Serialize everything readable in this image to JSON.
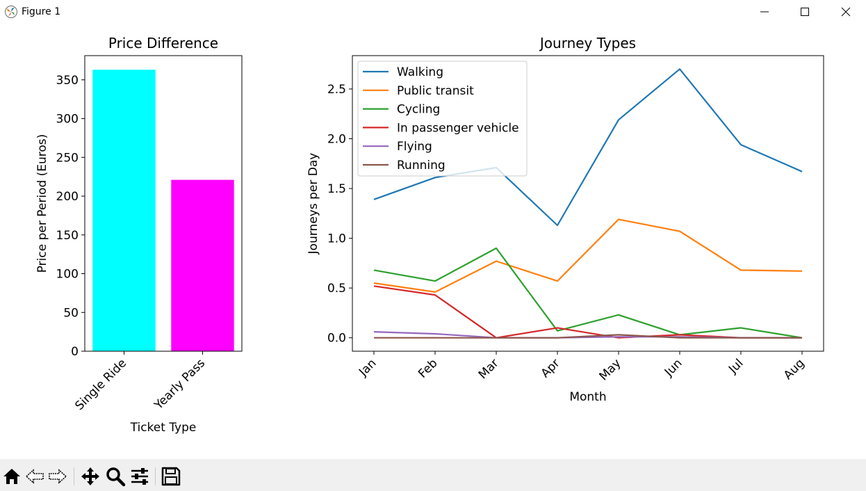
{
  "window": {
    "title": "Figure 1"
  },
  "toolbar": {
    "items": [
      "home-icon",
      "back-icon",
      "forward-icon",
      "pan-icon",
      "zoom-icon",
      "configure-subplots-icon",
      "save-icon"
    ]
  },
  "colors": {
    "toolbar_bg": "#f0f0f0"
  },
  "chart_data": [
    {
      "type": "bar",
      "title": "Price Difference",
      "xlabel": "Ticket Type",
      "ylabel": "Price per Period (Euros)",
      "categories": [
        "Single Ride",
        "Yearly Pass"
      ],
      "values": [
        363,
        221
      ],
      "colors": [
        "#00ffff",
        "#ff00ff"
      ],
      "ylim": [
        0,
        381.2
      ],
      "yticks": [
        0,
        50,
        100,
        150,
        200,
        250,
        300,
        350
      ],
      "ytick_labels": [
        "0",
        "50",
        "100",
        "150",
        "200",
        "250",
        "300",
        "350"
      ],
      "grid": false
    },
    {
      "type": "line",
      "title": "Journey Types",
      "xlabel": "Month",
      "ylabel": "Journeys per Day",
      "x": [
        "Jan",
        "Feb",
        "Mar",
        "Apr",
        "May",
        "Jun",
        "Jul",
        "Aug"
      ],
      "series": [
        {
          "name": "Walking",
          "color": "#1f77b4",
          "values": [
            1.39,
            1.61,
            1.71,
            1.13,
            2.19,
            2.7,
            1.94,
            1.67
          ]
        },
        {
          "name": "Public transit",
          "color": "#ff7f0e",
          "values": [
            0.55,
            0.46,
            0.77,
            0.57,
            1.19,
            1.07,
            0.68,
            0.67
          ]
        },
        {
          "name": "Cycling",
          "color": "#2ca02c",
          "values": [
            0.68,
            0.57,
            0.9,
            0.07,
            0.23,
            0.03,
            0.1,
            0.0
          ]
        },
        {
          "name": "In passenger vehicle",
          "color": "#d62728",
          "values": [
            0.52,
            0.43,
            0.0,
            0.1,
            0.0,
            0.03,
            0.0,
            0.0
          ]
        },
        {
          "name": "Flying",
          "color": "#9467bd",
          "values": [
            0.06,
            0.04,
            0.0,
            0.0,
            0.01,
            0.01,
            0.0,
            0.0
          ]
        },
        {
          "name": "Running",
          "color": "#8c564b",
          "values": [
            0.0,
            0.0,
            0.0,
            0.0,
            0.03,
            0.0,
            0.0,
            0.0
          ]
        }
      ],
      "ylim": [
        -0.135,
        2.835
      ],
      "yticks": [
        0,
        0.5,
        1,
        1.5,
        2,
        2.5
      ],
      "ytick_labels": [
        "0.0",
        "0.5",
        "1.0",
        "1.5",
        "2.0",
        "2.5"
      ],
      "legend_position": "top-left",
      "grid": false
    }
  ]
}
